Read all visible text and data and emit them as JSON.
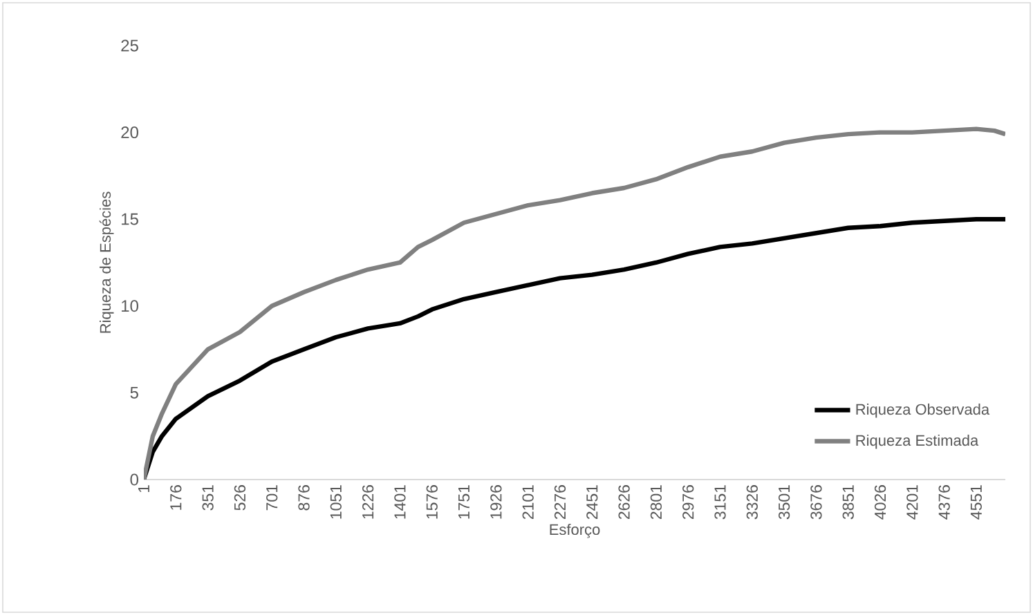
{
  "chart_data": {
    "type": "line",
    "xlabel": "Esforço",
    "ylabel": "Riqueza de Espécies",
    "x": [
      1,
      50,
      100,
      176,
      351,
      526,
      701,
      876,
      1051,
      1226,
      1401,
      1500,
      1576,
      1751,
      1926,
      2101,
      2276,
      2451,
      2626,
      2801,
      2976,
      3151,
      3326,
      3501,
      3676,
      3851,
      4026,
      4201,
      4376,
      4551,
      4650,
      4710
    ],
    "series": [
      {
        "name": "Riqueza Observada",
        "color": "#000000",
        "values": [
          0,
          1.6,
          2.5,
          3.5,
          4.8,
          5.7,
          6.8,
          7.5,
          8.2,
          8.7,
          9.0,
          9.4,
          9.8,
          10.4,
          10.8,
          11.2,
          11.6,
          11.8,
          12.1,
          12.5,
          13.0,
          13.4,
          13.6,
          13.9,
          14.2,
          14.5,
          14.6,
          14.8,
          14.9,
          15.0,
          15.0,
          15.0
        ]
      },
      {
        "name": "Riqueza Estimada",
        "color": "#808080",
        "values": [
          0,
          2.5,
          3.8,
          5.5,
          7.5,
          8.5,
          10.0,
          10.8,
          11.5,
          12.1,
          12.5,
          13.4,
          13.8,
          14.8,
          15.3,
          15.8,
          16.1,
          16.5,
          16.8,
          17.3,
          18.0,
          18.6,
          18.9,
          19.4,
          19.7,
          19.9,
          20.0,
          20.0,
          20.1,
          20.2,
          20.1,
          19.9
        ]
      }
    ],
    "xlim": [
      1,
      4710
    ],
    "xticks": [
      1,
      176,
      351,
      526,
      701,
      876,
      1051,
      1226,
      1401,
      1576,
      1751,
      1926,
      2101,
      2276,
      2451,
      2626,
      2801,
      2976,
      3151,
      3326,
      3501,
      3676,
      3851,
      4026,
      4201,
      4376,
      4551
    ],
    "ylim": [
      0,
      25
    ],
    "yticks": [
      0,
      5,
      10,
      15,
      20,
      25
    ],
    "grid": false,
    "legend": "bottom right",
    "marker": "none",
    "line_style": "solid"
  }
}
